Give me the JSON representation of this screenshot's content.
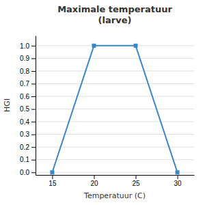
{
  "chart_data": {
    "type": "line",
    "title": "Maximale temperatuur\n(larve)",
    "xlabel": "Temperatuur (C)",
    "ylabel": "HGI",
    "x": [
      15,
      20,
      25,
      30
    ],
    "values": [
      0.0,
      1.0,
      1.0,
      0.0
    ],
    "color": "#3a87c8",
    "marker": "square",
    "xlim": [
      13,
      32
    ],
    "ylim": [
      -0.02,
      1.08
    ],
    "xticks": [
      15,
      20,
      25,
      30
    ],
    "yticks": [
      {
        "value": 0.0,
        "label": "0.0"
      },
      0.1,
      0.2,
      0.3,
      0.4,
      0.5,
      0.6,
      0.7,
      0.8,
      0.9,
      {
        "value": 1.0,
        "label": "1.0"
      }
    ],
    "grid": "y"
  }
}
